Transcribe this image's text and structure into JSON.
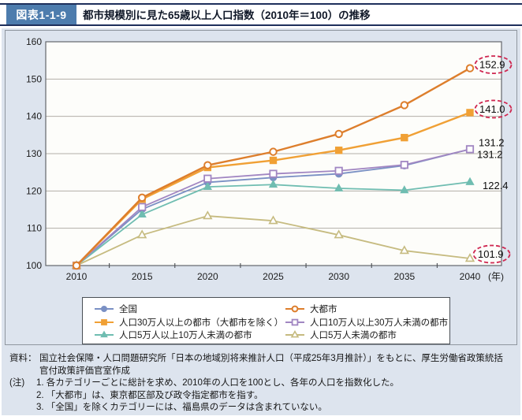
{
  "header": {
    "figure_label": "図表1-1-9",
    "title": "都市規模別に見た65歳以上人口指数（2010年＝100）の推移"
  },
  "colors": {
    "panel_bg": "#dde4ee",
    "header_box": "#4d7cad",
    "navy_rule": "#1e2f5c",
    "annotation_red": "#cf2750",
    "plot_bg": "#fdfdfa",
    "gridline": "#b3aea8",
    "plot_border": "#63676c"
  },
  "chart_data": {
    "type": "line",
    "x": [
      2010,
      2015,
      2020,
      2025,
      2030,
      2035,
      2040
    ],
    "x_unit_label": "(年)",
    "ylim": [
      100,
      160
    ],
    "y_ticks": [
      100,
      110,
      120,
      130,
      140,
      150,
      160
    ],
    "grid": true,
    "legend_position": "bottom",
    "draw_order": [
      0,
      4,
      5,
      3,
      2,
      1
    ],
    "series": [
      {
        "key": "zenkoku",
        "name": "全国",
        "color": "#7a90c4",
        "marker": "circle",
        "filled": true,
        "lw": 1.8,
        "values": [
          100,
          115.1,
          122.3,
          123.6,
          124.6,
          126.8,
          131.2
        ],
        "end_label": {
          "text": "131.2",
          "circled": false,
          "dx": 11,
          "dy": -8
        }
      },
      {
        "key": "daitoshi",
        "name": "大都市",
        "color": "#dd7e2c",
        "marker": "circle",
        "filled": false,
        "lw": 2.4,
        "values": [
          100,
          118.2,
          126.9,
          130.5,
          135.3,
          143.0,
          152.9
        ],
        "end_label": {
          "text": "152.9",
          "circled": true,
          "dx": 12,
          "dy": -4
        }
      },
      {
        "key": "city-300k-plus",
        "name": "人口30万人以上の都市（大都市を除く）",
        "color": "#f0a035",
        "marker": "square",
        "filled": true,
        "lw": 2.4,
        "values": [
          100,
          117.8,
          126.3,
          128.2,
          130.9,
          134.3,
          141.0
        ],
        "end_label": {
          "text": "141.0",
          "circled": true,
          "dx": 12,
          "dy": -4
        }
      },
      {
        "key": "city-100k-300k",
        "name": "人口10万人以上30万人未満の都市",
        "color": "#a186c2",
        "marker": "square",
        "filled": false,
        "lw": 1.8,
        "values": [
          100,
          115.7,
          123.3,
          124.6,
          125.4,
          127.0,
          131.2
        ],
        "end_label": {
          "text": "131.2",
          "circled": false,
          "dx": 9,
          "dy": 7
        }
      },
      {
        "key": "city-50k-100k",
        "name": "人口5万人以上10万人未満の都市",
        "color": "#6fbdb1",
        "marker": "triangle",
        "filled": true,
        "lw": 1.8,
        "values": [
          100,
          113.7,
          121.1,
          121.7,
          120.7,
          120.2,
          122.4
        ],
        "end_label": {
          "text": "122.4",
          "circled": false,
          "dx": 16,
          "dy": 5
        }
      },
      {
        "key": "city-under-50k",
        "name": "人口5万人未満の都市",
        "color": "#c6bb80",
        "marker": "triangle",
        "filled": false,
        "lw": 1.8,
        "values": [
          100,
          108.2,
          113.3,
          112.0,
          108.2,
          104.0,
          101.9
        ],
        "end_label": {
          "text": "101.9",
          "circled": true,
          "dx": 10,
          "dy": -5
        }
      }
    ]
  },
  "footnotes": {
    "source_label": "資料：",
    "source_lines": [
      "国立社会保障・人口問題研究所「日本の地域別将来推計人口（平成25年3月推計）」をもとに、厚生労働省政策統括",
      "官付政策評価官室作成"
    ],
    "note_label": "(注)",
    "notes": [
      "1. 各カテゴリーごとに総計を求め、2010年の人口を100とし、各年の人口を指数化した。",
      "2. 「大都市」は、東京都区部及び政令指定都市を指す。",
      "3. 「全国」を除くカテゴリーには、福島県のデータは含まれていない。"
    ]
  }
}
